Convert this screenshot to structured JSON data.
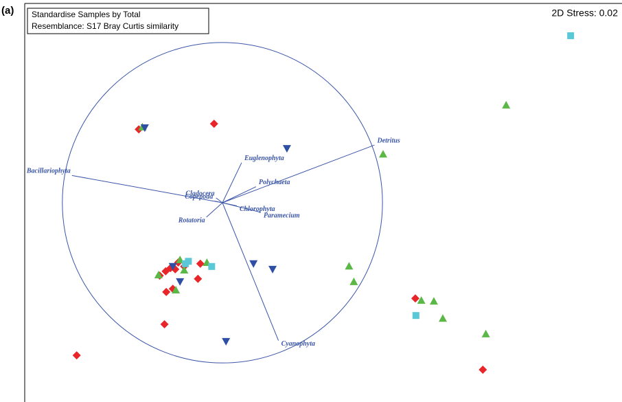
{
  "chart_data": {
    "type": "scatter",
    "panel_label": "(a)",
    "notes": [
      "Standardise Samples by Total",
      "Resemblance: S17 Bray Curtis similarity"
    ],
    "stress": "2D Stress: 0.02",
    "xlim": [
      0,
      100
    ],
    "ylim": [
      0,
      100
    ],
    "series": [
      {
        "color": "#e8262a",
        "marker": "diamond",
        "x": [
          31.7,
          19.1,
          22.6,
          23.6,
          24.4,
          25.2,
          26.7,
          29.4,
          29.0,
          23.7,
          24.8,
          23.4,
          8.7,
          65.4,
          76.7,
          25.7
        ],
        "y": [
          69.8,
          68.4,
          31.7,
          32.8,
          33.6,
          33.3,
          34.0,
          34.7,
          30.9,
          27.6,
          28.4,
          19.5,
          11.7,
          26.0,
          8.1,
          35.0
        ]
      },
      {
        "color": "#5cb846",
        "marker": "triangle-up",
        "x": [
          80.6,
          19.7,
          60.0,
          54.3,
          55.1,
          66.4,
          68.5,
          70.0,
          77.2,
          30.5,
          26.0,
          25.3,
          26.7,
          22.4
        ],
        "y": [
          74.5,
          69.0,
          62.2,
          34.1,
          30.2,
          25.5,
          25.3,
          21.0,
          17.1,
          35.0,
          35.7,
          28.1,
          33.1,
          31.9
        ]
      },
      {
        "color": "#2e4fa3",
        "marker": "triangle-down",
        "x": [
          20.1,
          43.9,
          38.3,
          41.5,
          33.7,
          26.0,
          24.8
        ],
        "y": [
          68.8,
          63.6,
          34.7,
          33.3,
          15.2,
          30.2,
          34.0
        ]
      },
      {
        "color": "#5bc8d8",
        "marker": "square",
        "x": [
          91.4,
          31.3,
          26.9,
          27.4,
          65.5
        ],
        "y": [
          91.9,
          34.0,
          34.7,
          35.3,
          21.7
        ]
      }
    ],
    "circle": {
      "x": 33.1,
      "y": 50.0,
      "r": 26.8,
      "color": "#3a55a8"
    },
    "vectors": [
      {
        "label": "Bacillariophyta",
        "x": -0.94,
        "y": 0.17
      },
      {
        "label": "Detritus",
        "x": 0.95,
        "y": 0.36
      },
      {
        "label": "Euglenophyta",
        "x": 0.12,
        "y": 0.25
      },
      {
        "label": "Polychaeta",
        "x": 0.21,
        "y": 0.1
      },
      {
        "label": "Cladocera",
        "x": -0.04,
        "y": 0.03
      },
      {
        "label": "Copepoda",
        "x": -0.05,
        "y": 0.01
      },
      {
        "label": "Chlorophyta",
        "x": 0.09,
        "y": -0.02
      },
      {
        "label": "Paramecium",
        "x": 0.24,
        "y": -0.06
      },
      {
        "label": "Rotatoria",
        "x": -0.1,
        "y": -0.09
      },
      {
        "label": "Cyanophyta",
        "x": 0.35,
        "y": -0.86
      }
    ]
  }
}
